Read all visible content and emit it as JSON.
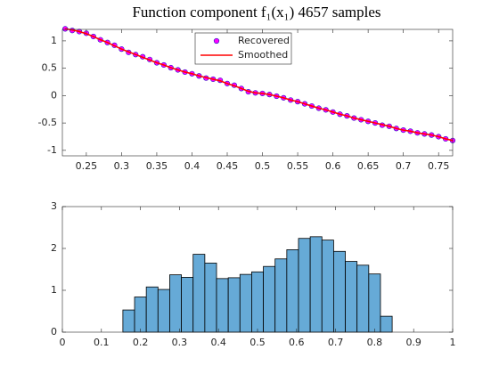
{
  "chart_data": [
    {
      "type": "line",
      "title": "Function component f₁(x₁) 4657 samples",
      "x": [
        0.22,
        0.23,
        0.24,
        0.25,
        0.26,
        0.27,
        0.28,
        0.29,
        0.3,
        0.31,
        0.32,
        0.33,
        0.34,
        0.35,
        0.36,
        0.37,
        0.38,
        0.39,
        0.4,
        0.41,
        0.42,
        0.43,
        0.44,
        0.45,
        0.46,
        0.47,
        0.48,
        0.49,
        0.5,
        0.51,
        0.52,
        0.53,
        0.54,
        0.55,
        0.56,
        0.57,
        0.58,
        0.59,
        0.6,
        0.61,
        0.62,
        0.63,
        0.64,
        0.65,
        0.66,
        0.67,
        0.68,
        0.69,
        0.7,
        0.71,
        0.72,
        0.73,
        0.74,
        0.75,
        0.76,
        0.77
      ],
      "series": [
        {
          "name": "Recovered",
          "mode": "markers",
          "color": "#ff00ff",
          "edge": "#2020c0",
          "values": [
            1.22,
            1.19,
            1.17,
            1.14,
            1.08,
            1.02,
            0.97,
            0.92,
            0.85,
            0.79,
            0.75,
            0.71,
            0.66,
            0.6,
            0.56,
            0.51,
            0.47,
            0.43,
            0.4,
            0.36,
            0.32,
            0.3,
            0.28,
            0.22,
            0.19,
            0.13,
            0.07,
            0.05,
            0.04,
            0.02,
            -0.01,
            -0.04,
            -0.08,
            -0.11,
            -0.15,
            -0.19,
            -0.23,
            -0.26,
            -0.3,
            -0.34,
            -0.37,
            -0.41,
            -0.44,
            -0.47,
            -0.5,
            -0.54,
            -0.56,
            -0.6,
            -0.63,
            -0.65,
            -0.68,
            -0.7,
            -0.72,
            -0.75,
            -0.79,
            -0.82
          ]
        },
        {
          "name": "Smoothed",
          "mode": "line",
          "color": "#ff0000",
          "values": [
            1.22,
            1.2,
            1.17,
            1.13,
            1.08,
            1.02,
            0.97,
            0.91,
            0.85,
            0.8,
            0.75,
            0.7,
            0.65,
            0.6,
            0.56,
            0.51,
            0.47,
            0.43,
            0.4,
            0.36,
            0.33,
            0.3,
            0.27,
            0.22,
            0.18,
            0.13,
            0.08,
            0.05,
            0.04,
            0.02,
            -0.01,
            -0.04,
            -0.08,
            -0.11,
            -0.15,
            -0.19,
            -0.23,
            -0.26,
            -0.3,
            -0.34,
            -0.37,
            -0.41,
            -0.44,
            -0.47,
            -0.5,
            -0.53,
            -0.56,
            -0.6,
            -0.63,
            -0.65,
            -0.68,
            -0.7,
            -0.72,
            -0.75,
            -0.79,
            -0.82
          ]
        }
      ],
      "xlim": [
        0.216,
        0.77
      ],
      "xticks": [
        0.25,
        0.3,
        0.35,
        0.4,
        0.45,
        0.5,
        0.55,
        0.6,
        0.65,
        0.7,
        0.75
      ],
      "ylim": [
        -1.1,
        1.21
      ],
      "yticks": [
        -1,
        -0.5,
        0,
        0.5,
        1
      ],
      "legend": "north"
    },
    {
      "type": "histogram",
      "bins": [
        0.155,
        0.185,
        0.215,
        0.245,
        0.275,
        0.305,
        0.335,
        0.365,
        0.395,
        0.425,
        0.455,
        0.485,
        0.515,
        0.545,
        0.575,
        0.605,
        0.635,
        0.665,
        0.695,
        0.725,
        0.755,
        0.785,
        0.815,
        0.845
      ],
      "values": [
        0.53,
        0.84,
        1.08,
        1.02,
        1.37,
        1.31,
        1.86,
        1.65,
        1.28,
        1.3,
        1.38,
        1.44,
        1.57,
        1.75,
        1.97,
        2.24,
        2.28,
        2.2,
        1.93,
        1.69,
        1.6,
        1.39,
        0.38
      ],
      "color": "#66aad7",
      "xlim": [
        0,
        1
      ],
      "xticks": [
        0,
        0.1,
        0.2,
        0.3,
        0.4,
        0.5,
        0.6,
        0.7,
        0.8,
        0.9,
        1
      ],
      "ylim": [
        0,
        3
      ],
      "yticks": [
        0,
        1,
        2,
        3
      ]
    }
  ]
}
